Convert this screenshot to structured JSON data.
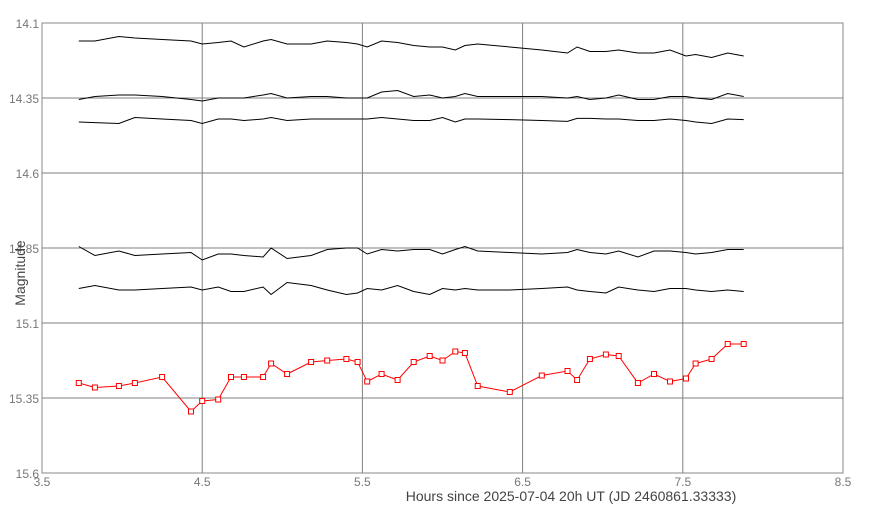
{
  "chart_data": {
    "type": "line",
    "xlabel": "Hours since 2025-07-04 20h UT (JD 2460861.33333)",
    "ylabel": "Magnitude",
    "xlim": [
      3.5,
      8.5
    ],
    "ylim": [
      15.6,
      14.1
    ],
    "y_inverted": true,
    "x_ticks": [
      "3.5",
      "4.5",
      "5.5",
      "6.5",
      "7.5",
      "8.5"
    ],
    "y_ticks": [
      "14.1",
      "14.35",
      "14.6",
      "14.85",
      "15.1",
      "15.35",
      "15.6"
    ],
    "grid": true,
    "legend": "none",
    "series": [
      {
        "color": "#000000",
        "markers": false,
        "x": [
          3.73,
          3.83,
          3.98,
          4.08,
          4.25,
          4.43,
          4.5,
          4.6,
          4.68,
          4.76,
          4.88,
          4.93,
          5.03,
          5.18,
          5.28,
          5.4,
          5.47,
          5.53,
          5.62,
          5.72,
          5.82,
          5.92,
          6.0,
          6.08,
          6.14,
          6.22,
          6.42,
          6.62,
          6.78,
          6.84,
          6.92,
          7.02,
          7.1,
          7.22,
          7.32,
          7.42,
          7.52,
          7.58,
          7.68,
          7.78,
          7.88
        ],
        "y": [
          14.16,
          14.16,
          14.145,
          14.15,
          14.155,
          14.16,
          14.17,
          14.165,
          14.16,
          14.18,
          14.16,
          14.155,
          14.17,
          14.17,
          14.16,
          14.165,
          14.17,
          14.18,
          14.16,
          14.165,
          14.175,
          14.18,
          14.18,
          14.19,
          14.175,
          14.17,
          14.18,
          14.19,
          14.2,
          14.18,
          14.195,
          14.195,
          14.19,
          14.2,
          14.2,
          14.19,
          14.21,
          14.205,
          14.215,
          14.2,
          14.21
        ]
      },
      {
        "color": "#000000",
        "markers": false,
        "x": [
          3.73,
          3.83,
          3.98,
          4.08,
          4.25,
          4.43,
          4.5,
          4.6,
          4.68,
          4.76,
          4.88,
          4.93,
          5.03,
          5.18,
          5.28,
          5.4,
          5.47,
          5.53,
          5.62,
          5.72,
          5.82,
          5.92,
          6.0,
          6.08,
          6.14,
          6.22,
          6.42,
          6.62,
          6.78,
          6.84,
          6.92,
          7.02,
          7.1,
          7.22,
          7.32,
          7.42,
          7.52,
          7.58,
          7.68,
          7.78,
          7.88
        ],
        "y": [
          14.355,
          14.345,
          14.34,
          14.34,
          14.345,
          14.355,
          14.36,
          14.35,
          14.35,
          14.35,
          14.34,
          14.335,
          14.35,
          14.345,
          14.345,
          14.35,
          14.35,
          14.35,
          14.33,
          14.325,
          14.345,
          14.34,
          14.35,
          14.345,
          14.335,
          14.345,
          14.345,
          14.345,
          14.35,
          14.345,
          14.355,
          14.35,
          14.34,
          14.355,
          14.355,
          14.345,
          14.345,
          14.35,
          14.355,
          14.335,
          14.345
        ]
      },
      {
        "color": "#000000",
        "markers": false,
        "x": [
          3.73,
          3.83,
          3.98,
          4.08,
          4.25,
          4.43,
          4.5,
          4.6,
          4.68,
          4.76,
          4.88,
          4.93,
          5.03,
          5.18,
          5.28,
          5.4,
          5.47,
          5.53,
          5.62,
          5.72,
          5.82,
          5.92,
          6.0,
          6.08,
          6.14,
          6.22,
          6.42,
          6.62,
          6.78,
          6.84,
          6.92,
          7.02,
          7.1,
          7.22,
          7.32,
          7.42,
          7.52,
          7.58,
          7.68,
          7.78,
          7.88
        ],
        "y": [
          14.43,
          14.432,
          14.435,
          14.415,
          14.42,
          14.425,
          14.435,
          14.42,
          14.42,
          14.425,
          14.42,
          14.415,
          14.425,
          14.42,
          14.42,
          14.42,
          14.42,
          14.42,
          14.415,
          14.42,
          14.425,
          14.425,
          14.415,
          14.43,
          14.42,
          14.42,
          14.422,
          14.425,
          14.428,
          14.418,
          14.418,
          14.42,
          14.42,
          14.425,
          14.425,
          14.42,
          14.425,
          14.43,
          14.435,
          14.42,
          14.422
        ]
      },
      {
        "color": "#000000",
        "markers": false,
        "x": [
          3.73,
          3.83,
          3.98,
          4.08,
          4.25,
          4.43,
          4.5,
          4.6,
          4.68,
          4.76,
          4.88,
          4.93,
          5.03,
          5.18,
          5.28,
          5.4,
          5.47,
          5.53,
          5.62,
          5.72,
          5.82,
          5.92,
          6.0,
          6.08,
          6.14,
          6.22,
          6.42,
          6.62,
          6.78,
          6.84,
          6.92,
          7.02,
          7.1,
          7.22,
          7.32,
          7.42,
          7.52,
          7.58,
          7.68,
          7.78,
          7.88
        ],
        "y": [
          14.845,
          14.875,
          14.86,
          14.875,
          14.87,
          14.865,
          14.89,
          14.87,
          14.87,
          14.875,
          14.88,
          14.85,
          14.885,
          14.875,
          14.855,
          14.85,
          14.85,
          14.87,
          14.855,
          14.86,
          14.855,
          14.855,
          14.87,
          14.855,
          14.845,
          14.86,
          14.865,
          14.87,
          14.865,
          14.855,
          14.865,
          14.87,
          14.86,
          14.88,
          14.86,
          14.86,
          14.865,
          14.87,
          14.865,
          14.855,
          14.855
        ]
      },
      {
        "color": "#000000",
        "markers": false,
        "x": [
          3.73,
          3.83,
          3.98,
          4.08,
          4.25,
          4.43,
          4.5,
          4.6,
          4.68,
          4.76,
          4.88,
          4.93,
          5.03,
          5.18,
          5.28,
          5.4,
          5.47,
          5.53,
          5.62,
          5.72,
          5.82,
          5.92,
          6.0,
          6.08,
          6.14,
          6.22,
          6.42,
          6.62,
          6.78,
          6.84,
          6.92,
          7.02,
          7.1,
          7.22,
          7.32,
          7.42,
          7.52,
          7.58,
          7.68,
          7.78,
          7.88
        ],
        "y": [
          14.985,
          14.975,
          14.99,
          14.99,
          14.985,
          14.98,
          14.99,
          14.98,
          14.995,
          14.995,
          14.98,
          15.005,
          14.965,
          14.975,
          14.99,
          15.005,
          15.0,
          14.985,
          14.99,
          14.975,
          14.995,
          15.005,
          14.985,
          14.99,
          14.985,
          14.99,
          14.99,
          14.985,
          14.98,
          14.99,
          14.995,
          15.0,
          14.98,
          14.99,
          14.995,
          14.985,
          14.985,
          14.99,
          14.995,
          14.99,
          14.995
        ]
      },
      {
        "color": "#ff0000",
        "markers": true,
        "x": [
          3.73,
          3.83,
          3.98,
          4.08,
          4.25,
          4.43,
          4.5,
          4.6,
          4.68,
          4.76,
          4.88,
          4.93,
          5.03,
          5.18,
          5.28,
          5.4,
          5.47,
          5.53,
          5.62,
          5.72,
          5.82,
          5.92,
          6.0,
          6.08,
          6.14,
          6.22,
          6.42,
          6.62,
          6.78,
          6.84,
          6.92,
          7.02,
          7.1,
          7.22,
          7.32,
          7.42,
          7.52,
          7.58,
          7.68,
          7.78,
          7.88
        ],
        "y": [
          15.3,
          15.315,
          15.31,
          15.3,
          15.28,
          15.395,
          15.36,
          15.355,
          15.28,
          15.28,
          15.28,
          15.235,
          15.27,
          15.23,
          15.225,
          15.22,
          15.23,
          15.295,
          15.27,
          15.29,
          15.23,
          15.21,
          15.225,
          15.195,
          15.2,
          15.31,
          15.33,
          15.275,
          15.26,
          15.29,
          15.22,
          15.205,
          15.21,
          15.3,
          15.27,
          15.295,
          15.285,
          15.235,
          15.22,
          15.17,
          15.17
        ]
      }
    ]
  }
}
